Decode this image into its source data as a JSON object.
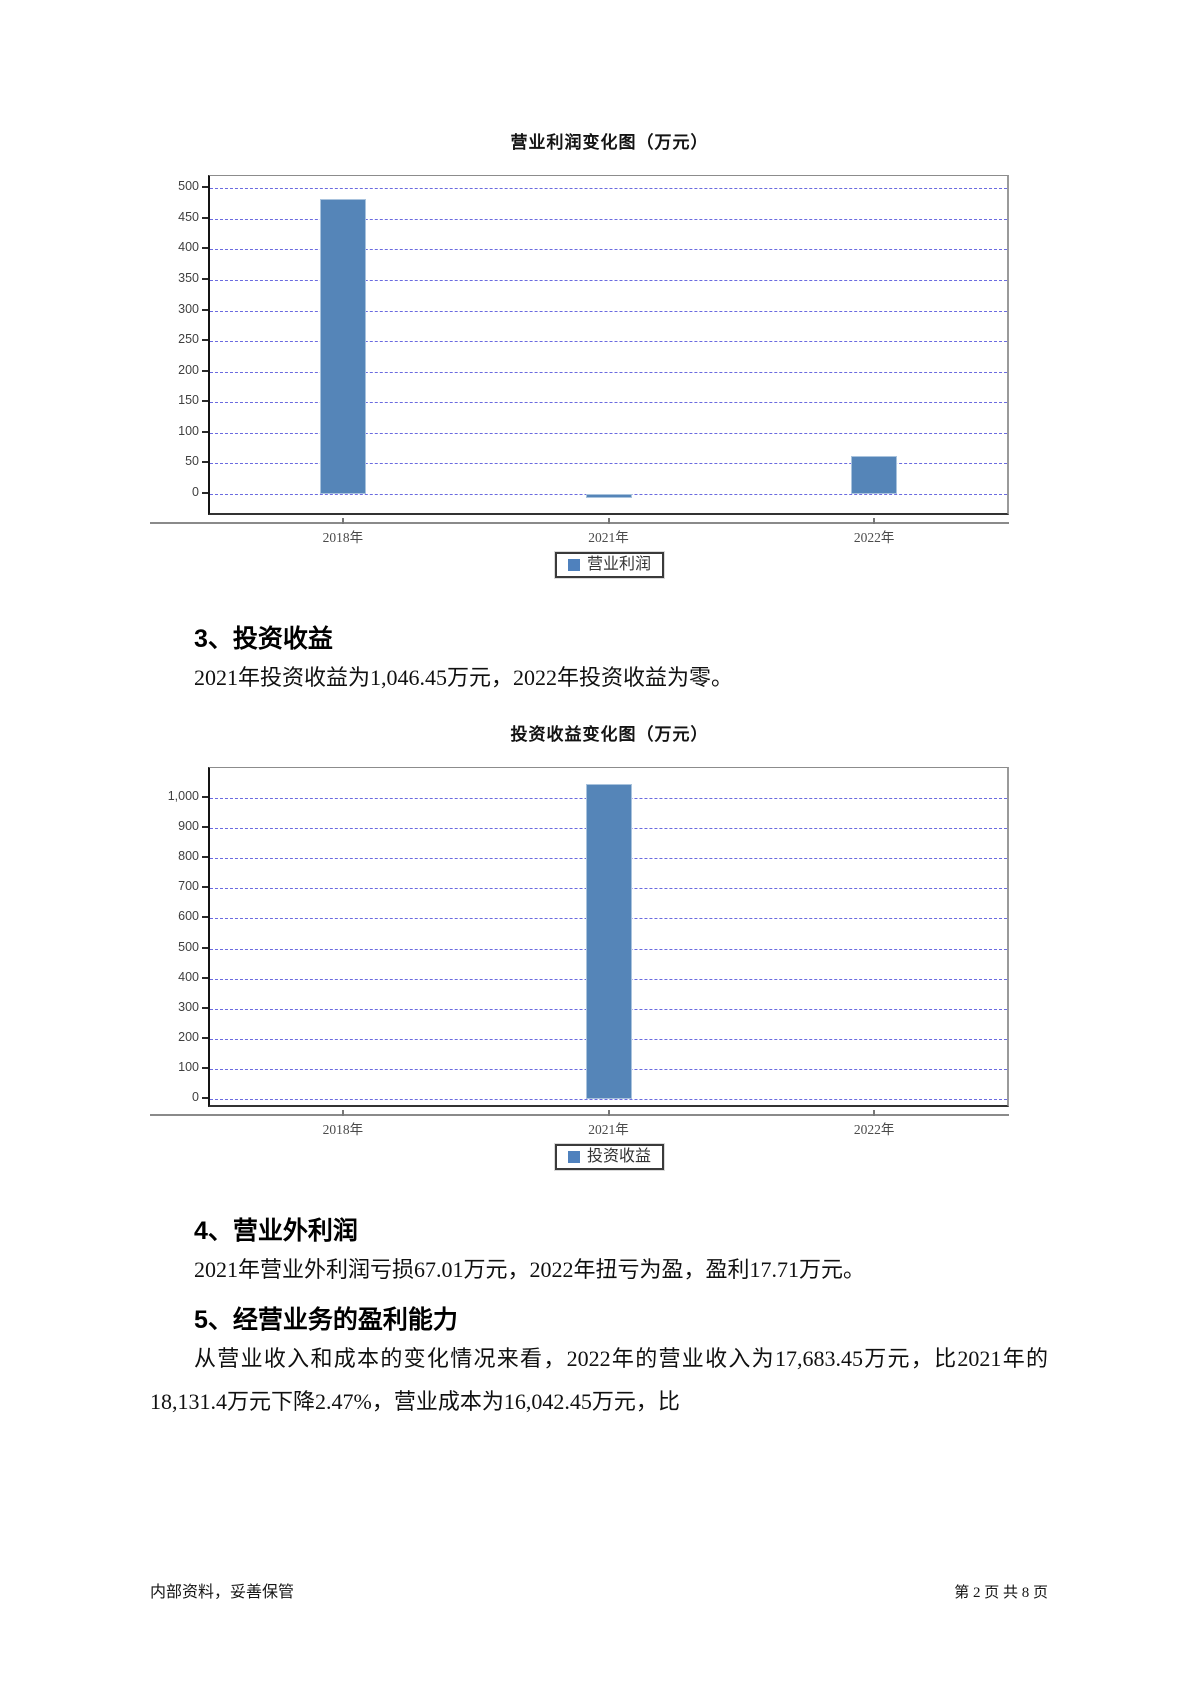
{
  "document": {
    "sections": [
      {
        "heading": "3、投资收益",
        "paragraph": "2021年投资收益为1,046.45万元，2022年投资收益为零。"
      },
      {
        "heading": "4、营业外利润",
        "paragraph": "2021年营业外利润亏损67.01万元，2022年扭亏为盈，盈利17.71万元。"
      },
      {
        "heading": "5、经营业务的盈利能力",
        "paragraph": "从营业收入和成本的变化情况来看，2022年的营业收入为17,683.45万元，比2021年的18,131.4万元下降2.47%，营业成本为16,042.45万元，比"
      }
    ],
    "footer": {
      "left": "内部资料，妥善保管",
      "right": "第 2 页  共 8 页"
    }
  },
  "chart_data": [
    {
      "type": "bar",
      "title": "营业利润变化图（万元）",
      "categories": [
        "2018年",
        "2021年",
        "2022年"
      ],
      "series": [
        {
          "name": "营业利润",
          "values": [
            482,
            -7,
            62
          ]
        }
      ],
      "ylim": [
        -31,
        520
      ],
      "yticks": [
        {
          "v": 0,
          "label": "0"
        },
        {
          "v": 50,
          "label": "50"
        },
        {
          "v": 100,
          "label": "100"
        },
        {
          "v": 150,
          "label": "150"
        },
        {
          "v": 200,
          "label": "200"
        },
        {
          "v": 250,
          "label": "250"
        },
        {
          "v": 300,
          "label": "300"
        },
        {
          "v": 350,
          "label": "350"
        },
        {
          "v": 400,
          "label": "400"
        },
        {
          "v": 450,
          "label": "450"
        },
        {
          "v": 500,
          "label": "500"
        }
      ],
      "grid": "horizontal-dashed",
      "legend_position": "bottom",
      "bar_color": "#5585b8"
    },
    {
      "type": "bar",
      "title": "投资收益变化图（万元）",
      "categories": [
        "2018年",
        "2021年",
        "2022年"
      ],
      "series": [
        {
          "name": "投资收益",
          "values": [
            0,
            1046.45,
            0
          ]
        }
      ],
      "ylim": [
        -20,
        1100
      ],
      "yticks": [
        {
          "v": 0,
          "label": "0"
        },
        {
          "v": 100,
          "label": "100"
        },
        {
          "v": 200,
          "label": "200"
        },
        {
          "v": 300,
          "label": "300"
        },
        {
          "v": 400,
          "label": "400"
        },
        {
          "v": 500,
          "label": "500"
        },
        {
          "v": 600,
          "label": "600"
        },
        {
          "v": 700,
          "label": "700"
        },
        {
          "v": 800,
          "label": "800"
        },
        {
          "v": 900,
          "label": "900"
        },
        {
          "v": 1000,
          "label": "1,000"
        }
      ],
      "grid": "horizontal-dashed",
      "legend_position": "bottom",
      "bar_color": "#5585b8"
    }
  ],
  "colors": {
    "bar_fill": "#5585b8",
    "bar_border": "#a9c3dd",
    "legend_swatch": "#4f81bd",
    "gridline": "#6b6be0",
    "axis_line": "#8a8a8a"
  }
}
